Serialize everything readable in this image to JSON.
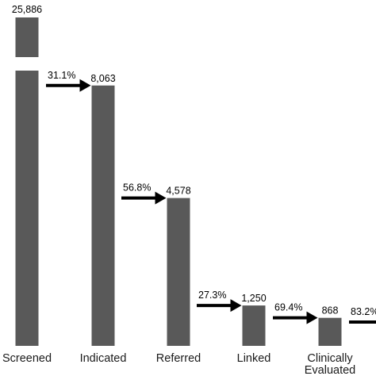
{
  "chart_data": {
    "type": "bar",
    "axis_break": true,
    "categories": [
      "Screened",
      "Indicated",
      "Referred",
      "Linked",
      "Clinically Evaluated",
      ""
    ],
    "category_lines": [
      [
        "Screened"
      ],
      [
        "Indicated"
      ],
      [
        "Referred"
      ],
      [
        "Linked"
      ],
      [
        "Clinically",
        "Evaluated"
      ],
      [
        ""
      ]
    ],
    "values": [
      25886,
      8063,
      4578,
      1250,
      868,
      null
    ],
    "value_labels": [
      "25,886",
      "8,063",
      "4,578",
      "1,250",
      "868",
      ""
    ],
    "conversion_labels": [
      "31.1%",
      "56.8%",
      "27.3%",
      "69.4%",
      "83.2%"
    ],
    "title": "",
    "xlabel": "",
    "ylabel": "",
    "ylim": [
      0,
      8500
    ],
    "colors": {
      "bar": "#595959",
      "arrow": "#000000",
      "text": "#000000",
      "background": "#ffffff"
    }
  }
}
